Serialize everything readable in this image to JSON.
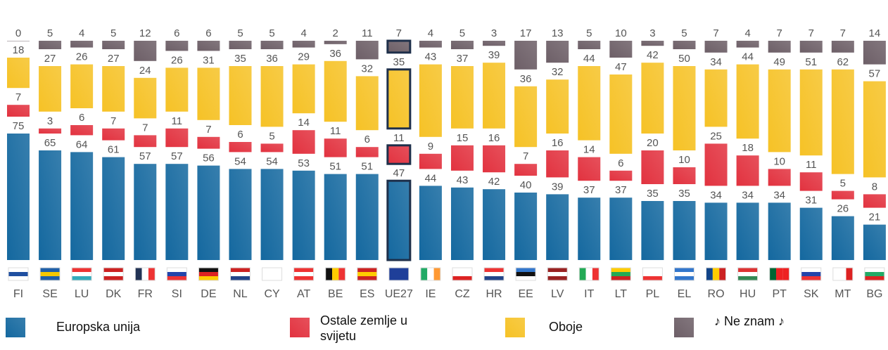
{
  "chart_data": {
    "type": "stacked_bar",
    "categories": [
      "FI",
      "SE",
      "LU",
      "DK",
      "FR",
      "SI",
      "DE",
      "NL",
      "CY",
      "AT",
      "BE",
      "ES",
      "UE27",
      "IE",
      "CZ",
      "HR",
      "EE",
      "LV",
      "IT",
      "LT",
      "PL",
      "EL",
      "RO",
      "HU",
      "PT",
      "SK",
      "MT",
      "BG"
    ],
    "highlight": "UE27",
    "series": [
      {
        "name": "Europska unija",
        "color": "#14689f",
        "values": [
          75,
          65,
          64,
          61,
          57,
          57,
          56,
          54,
          54,
          53,
          51,
          51,
          47,
          44,
          43,
          42,
          40,
          39,
          37,
          37,
          35,
          35,
          34,
          34,
          34,
          31,
          26,
          21
        ]
      },
      {
        "name": "Ostale zemlje u svijetu",
        "color": "#e2323f",
        "values": [
          7,
          3,
          6,
          7,
          7,
          11,
          7,
          6,
          5,
          14,
          11,
          6,
          11,
          9,
          15,
          16,
          7,
          16,
          14,
          6,
          20,
          10,
          25,
          18,
          10,
          11,
          5,
          8
        ]
      },
      {
        "name": "Oboje",
        "color": "#f6c226",
        "values": [
          18,
          27,
          26,
          27,
          24,
          26,
          31,
          35,
          36,
          29,
          36,
          32,
          35,
          43,
          37,
          39,
          36,
          32,
          44,
          47,
          42,
          50,
          34,
          44,
          49,
          51,
          62,
          57
        ]
      },
      {
        "name": "♪ Ne znam ♪",
        "color": "#6d5f67",
        "values": [
          0,
          5,
          4,
          5,
          12,
          6,
          6,
          5,
          5,
          4,
          2,
          11,
          7,
          4,
          5,
          3,
          17,
          13,
          5,
          10,
          3,
          5,
          7,
          4,
          7,
          7,
          7,
          14
        ]
      }
    ]
  }
}
